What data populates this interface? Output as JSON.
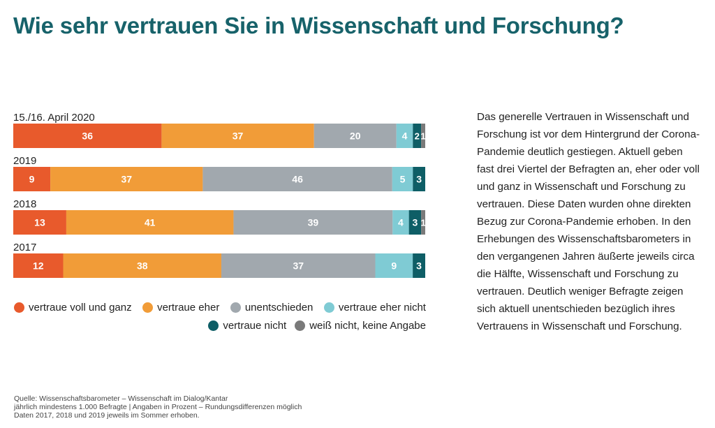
{
  "title": "Wie sehr vertrauen Sie in Wissenschaft und Forschung?",
  "colors": {
    "title": "#17626a",
    "segments": [
      "#e85a2c",
      "#f19c38",
      "#a1a8ae",
      "#7fcbd4",
      "#0e5e66",
      "#7a7a7a"
    ]
  },
  "chart_data": {
    "type": "bar",
    "orientation": "horizontal",
    "stacked": true,
    "unit": "%",
    "categories": [
      "15./16. April 2020",
      "2019",
      "2018",
      "2017"
    ],
    "series": [
      {
        "name": "vertraue voll und ganz",
        "values": [
          36,
          9,
          13,
          12
        ]
      },
      {
        "name": "vertraue eher",
        "values": [
          37,
          37,
          41,
          38
        ]
      },
      {
        "name": "unentschieden",
        "values": [
          20,
          46,
          39,
          37
        ]
      },
      {
        "name": "vertraue eher nicht",
        "values": [
          4,
          5,
          4,
          9
        ]
      },
      {
        "name": "vertraue nicht",
        "values": [
          2,
          3,
          3,
          3
        ]
      },
      {
        "name": "weiß nicht, keine Angabe",
        "values": [
          1,
          0,
          1,
          0
        ]
      }
    ],
    "legend_position": "bottom"
  },
  "legend": [
    {
      "label": "vertraue voll und ganz"
    },
    {
      "label": "vertraue eher"
    },
    {
      "label": "unentschieden"
    },
    {
      "label": "vertraue eher nicht"
    },
    {
      "label": "vertraue nicht"
    },
    {
      "label": "weiß nicht, keine Angabe"
    }
  ],
  "description": "Das generelle Vertrauen in Wissenschaft und Forschung ist vor dem Hintergrund der Corona-Pandemie deutlich gestiegen. Aktuell geben fast drei Viertel der Befragten an, eher oder voll und ganz in Wissenschaft und Forschung zu vertrauen. Diese Daten wurden ohne direkten Bezug zur Corona-Pandemie erhoben. In den Erhebungen des Wissenschaftsbarometers in den vergangenen Jahren äußerte jeweils circa die Hälfte, Wissenschaft und Forschung zu vertrauen. Deutlich weniger Befragte zeigen sich aktuell unentschieden bezüglich ihres Vertrauens in Wissenschaft und Forschung.",
  "footnote": {
    "line1": "Quelle: Wissenschaftsbarometer – Wissenschaft im Dialog/Kantar",
    "line2": "jährlich mindestens 1.000 Befragte | Angaben in Prozent – Rundungsdifferenzen möglich",
    "line3": "Daten 2017, 2018 und 2019 jeweils im Sommer erhoben."
  }
}
